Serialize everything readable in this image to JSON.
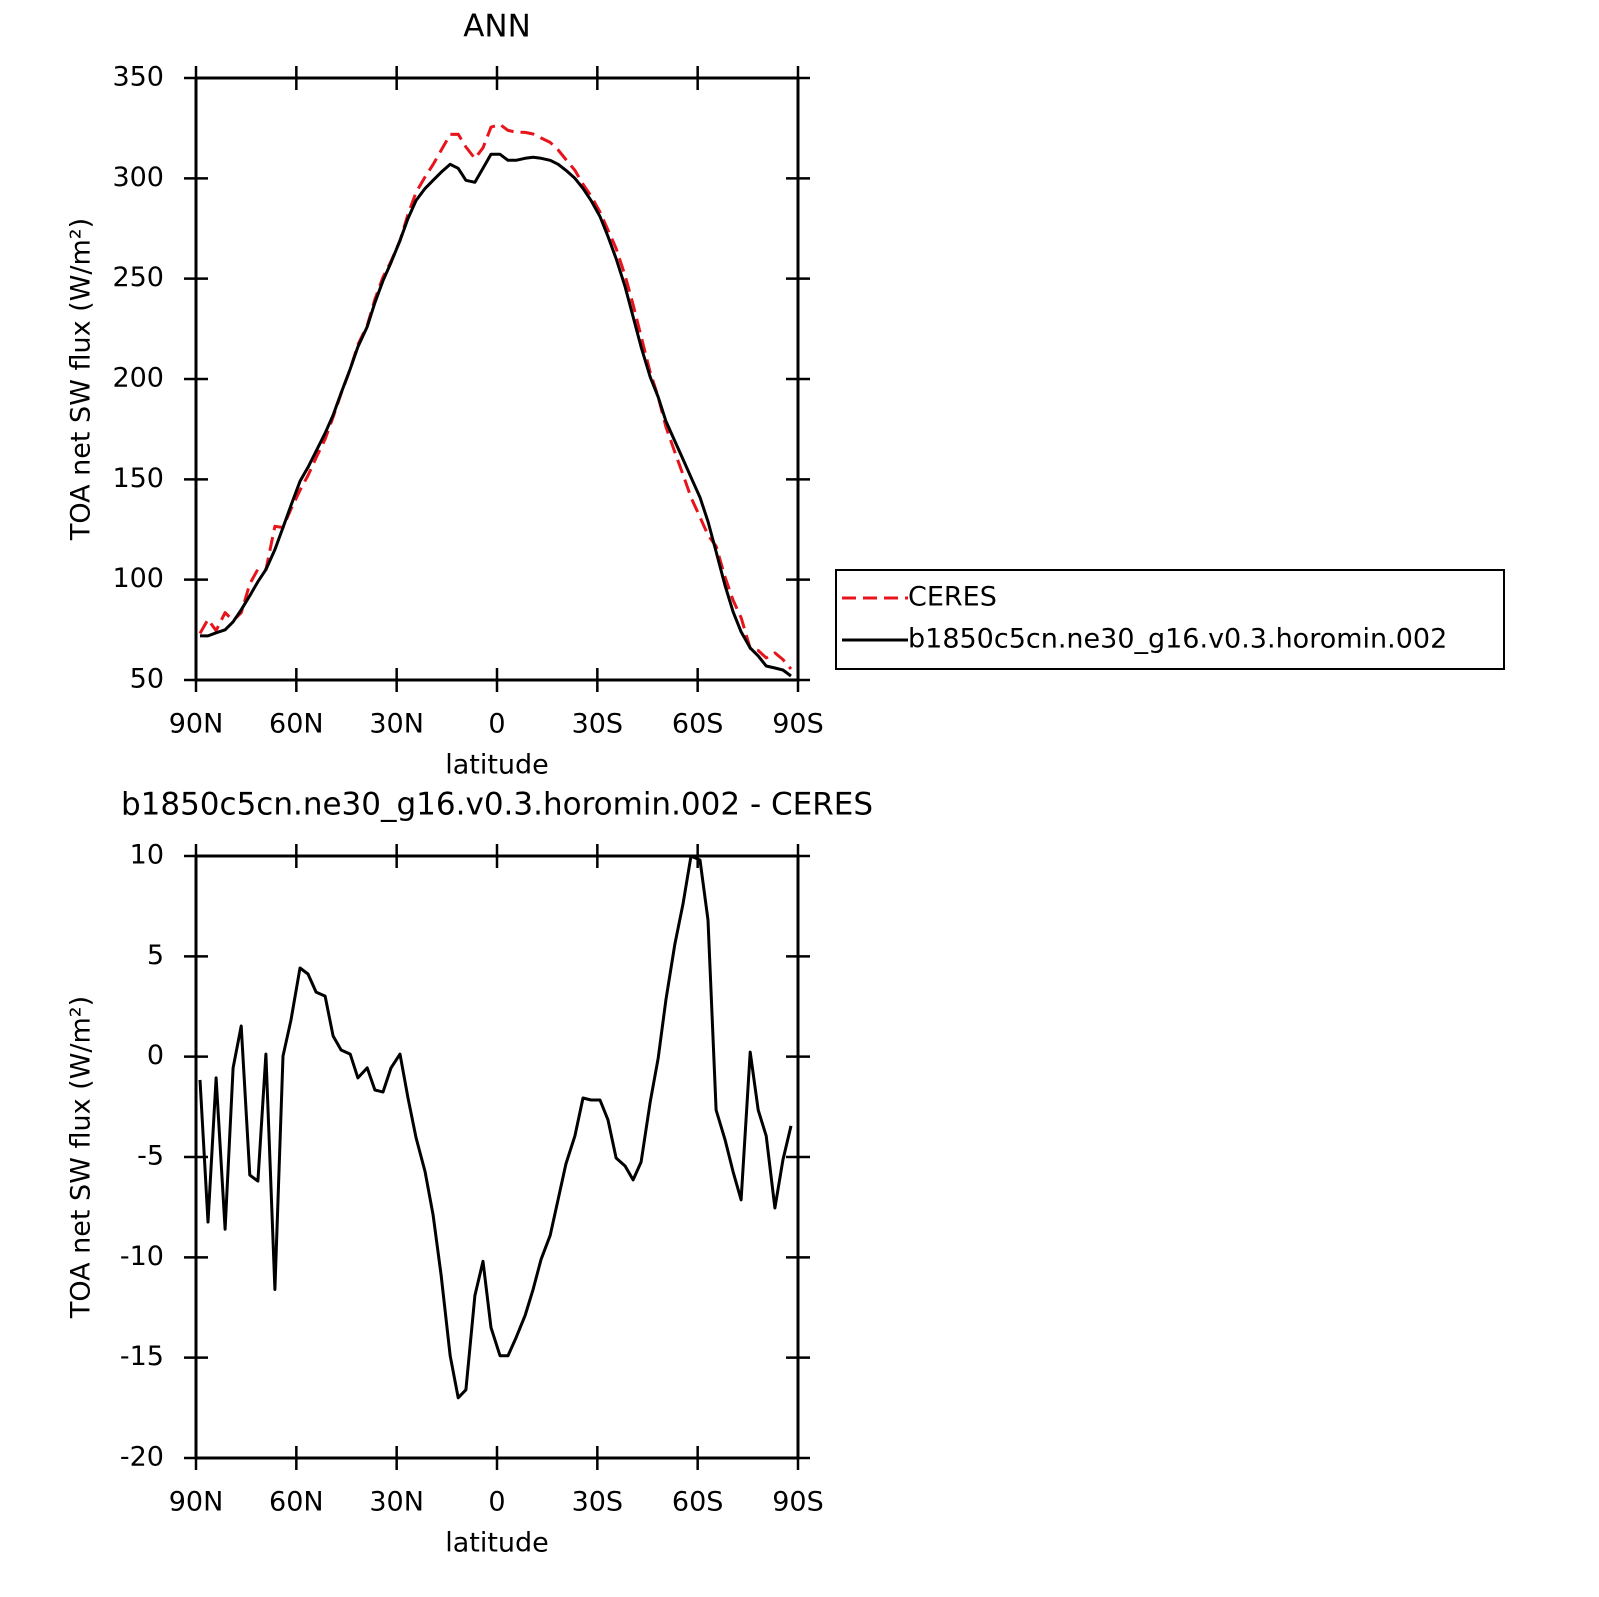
{
  "chart_data": [
    {
      "type": "line",
      "title": "ANN",
      "xlabel": "latitude",
      "ylabel": "TOA net SW flux (W/m²)",
      "x": [
        88.8,
        86.4,
        84.0,
        81.3,
        78.9,
        76.5,
        73.9,
        71.5,
        69.1,
        66.4,
        64.0,
        61.6,
        58.9,
        56.5,
        54.1,
        51.4,
        49.0,
        46.6,
        43.9,
        41.6,
        38.8,
        36.5,
        34.1,
        31.7,
        29.0,
        26.6,
        24.2,
        21.5,
        19.1,
        16.7,
        14.0,
        11.6,
        9.3,
        6.6,
        4.2,
        1.8,
        -0.9,
        -3.3,
        -5.7,
        -8.4,
        -10.8,
        -13.2,
        -15.9,
        -18.3,
        -20.6,
        -23.3,
        -25.7,
        -28.1,
        -30.8,
        -33.2,
        -35.6,
        -38.3,
        -40.7,
        -43.1,
        -45.8,
        -48.2,
        -50.5,
        -53.2,
        -55.6,
        -58.0,
        -60.7,
        -63.1,
        -65.5,
        -68.2,
        -70.6,
        -73.0,
        -75.7,
        -78.1,
        -80.5,
        -83.1,
        -85.5,
        -87.9
      ],
      "series": [
        {
          "name": "CERES",
          "color": "#e8141c",
          "dashed": true,
          "values": [
            73.2,
            80.2,
            74.6,
            83.6,
            79.6,
            83.5,
            97.9,
            105.2,
            104.9,
            126.6,
            126.0,
            135.2,
            144.6,
            151.9,
            160.8,
            170.0,
            181.0,
            192.7,
            204.9,
            217.1,
            226.6,
            239.7,
            250.8,
            258.6,
            268.9,
            282.1,
            293.1,
            300.7,
            306.9,
            313.9,
            321.9,
            322.0,
            315.6,
            309.9,
            315.2,
            325.5,
            326.9,
            323.9,
            323.0,
            322.9,
            322.1,
            320.1,
            317.9,
            314.1,
            309.4,
            304.0,
            297.1,
            291.2,
            283.2,
            274.2,
            265.1,
            251.5,
            237.1,
            221.3,
            203.3,
            191.1,
            176.2,
            163.4,
            152.4,
            141.0,
            131.2,
            122.2,
            116.7,
            101.2,
            89.7,
            81.1,
            65.8,
            64.7,
            61.0,
            63.5,
            60.2,
            55.5
          ]
        },
        {
          "name": "b1850c5cn.ne30_g16.v0.3.horomin.002",
          "color": "#000000",
          "dashed": false,
          "values": [
            72,
            72,
            73.5,
            75,
            79,
            85,
            92,
            99,
            105,
            115,
            126,
            137,
            149,
            156,
            164,
            173,
            182,
            193,
            205,
            216,
            226,
            238,
            249,
            258,
            269,
            280,
            289,
            295,
            299,
            303,
            307,
            305,
            299,
            298,
            305,
            312,
            312,
            309,
            309,
            310,
            310.5,
            310,
            309,
            307,
            304,
            300,
            295,
            289,
            281,
            271,
            260,
            246,
            231,
            216,
            201,
            191,
            179,
            169,
            160,
            151,
            141,
            129,
            114,
            97,
            84,
            74,
            66,
            62,
            57,
            56,
            55,
            52
          ]
        }
      ],
      "xlim": [
        90,
        -90
      ],
      "xticks": [
        {
          "value": 90,
          "label": "90N"
        },
        {
          "value": 60,
          "label": "60N"
        },
        {
          "value": 30,
          "label": "30N"
        },
        0,
        {
          "value": -30,
          "label": "30S"
        },
        {
          "value": -60,
          "label": "60S"
        },
        {
          "value": -90,
          "label": "90S"
        }
      ],
      "ylim": [
        50,
        350
      ],
      "yticks": [
        50,
        100,
        150,
        200,
        250,
        300,
        350
      ],
      "legend": "outside-right"
    },
    {
      "type": "line",
      "title": "b1850c5cn.ne30_g16.v0.3.horomin.002 - CERES",
      "xlabel": "latitude",
      "ylabel": "TOA net SW flux (W/m²)",
      "x": [
        88.8,
        86.4,
        84.0,
        81.3,
        78.9,
        76.5,
        73.9,
        71.5,
        69.1,
        66.4,
        64.0,
        61.6,
        58.9,
        56.5,
        54.1,
        51.4,
        49.0,
        46.6,
        43.9,
        41.6,
        38.8,
        36.5,
        34.1,
        31.7,
        29.0,
        26.6,
        24.2,
        21.5,
        19.1,
        16.7,
        14.0,
        11.6,
        9.3,
        6.6,
        4.2,
        1.8,
        -0.9,
        -3.3,
        -5.7,
        -8.4,
        -10.8,
        -13.2,
        -15.9,
        -18.3,
        -20.6,
        -23.3,
        -25.7,
        -28.1,
        -30.8,
        -33.2,
        -35.6,
        -38.3,
        -40.7,
        -43.1,
        -45.8,
        -48.2,
        -50.5,
        -53.2,
        -55.6,
        -58.0,
        -60.7,
        -63.1,
        -65.5,
        -68.2,
        -70.6,
        -73.0,
        -75.7,
        -78.1,
        -80.5,
        -83.1,
        -85.5,
        -87.9
      ],
      "values": [
        -1.16,
        -8.24,
        -1.06,
        -8.6,
        -0.56,
        1.53,
        -5.9,
        -6.2,
        0.13,
        -11.6,
        0.03,
        1.83,
        4.42,
        4.12,
        3.22,
        3.02,
        1.03,
        0.33,
        0.13,
        -1.06,
        -0.56,
        -1.66,
        -1.76,
        -0.56,
        0.13,
        -2.06,
        -4.05,
        -5.74,
        -7.89,
        -10.88,
        -14.91,
        -17.0,
        -16.6,
        -11.9,
        -10.2,
        -13.5,
        -14.9,
        -14.9,
        -14.0,
        -12.9,
        -11.6,
        -10.1,
        -8.9,
        -7.1,
        -5.35,
        -3.95,
        -2.06,
        -2.16,
        -2.16,
        -3.15,
        -5.05,
        -5.45,
        -6.14,
        -5.25,
        -2.26,
        -0.07,
        2.83,
        5.62,
        7.61,
        10.0,
        9.8,
        6.81,
        -2.66,
        -4.15,
        -5.74,
        -7.14,
        0.23,
        -2.66,
        -3.95,
        -7.54,
        -5.15,
        -3.45
      ],
      "color": "#000000",
      "xlim": [
        90,
        -90
      ],
      "xticks": [
        {
          "value": 90,
          "label": "90N"
        },
        {
          "value": 60,
          "label": "60N"
        },
        {
          "value": 30,
          "label": "30N"
        },
        0,
        {
          "value": -30,
          "label": "30S"
        },
        {
          "value": -60,
          "label": "60S"
        },
        {
          "value": -90,
          "label": "90S"
        }
      ],
      "ylim": [
        -20,
        10
      ],
      "yticks": [
        -20,
        -15,
        -10,
        -5,
        0,
        5,
        10
      ]
    }
  ]
}
